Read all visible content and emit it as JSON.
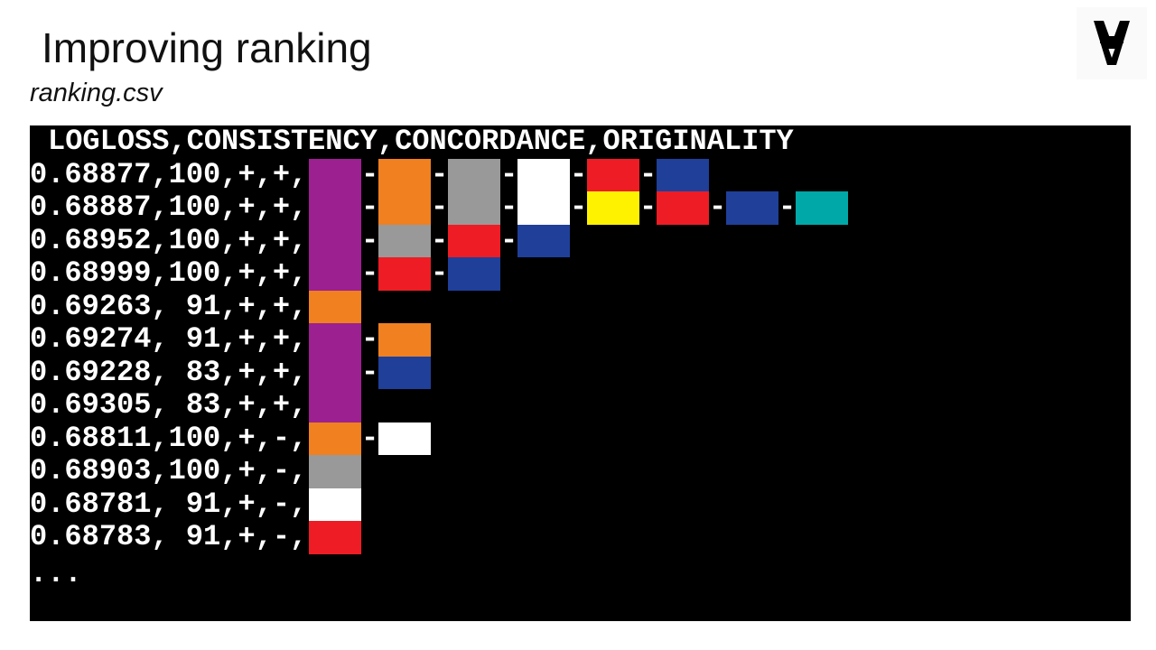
{
  "slide": {
    "title": "Improving ranking",
    "subtitle": "ranking.csv",
    "logo_icon": "inverted-a-logo-icon"
  },
  "terminal": {
    "header": "LOGLOSS,CONSISTENCY,CONCORDANCE,ORIGINALITY",
    "dash_glyph": "-",
    "ellipsis": "...",
    "colors": {
      "purple": "#9c2090",
      "orange": "#f08020",
      "gray": "#999999",
      "white": "#ffffff",
      "red": "#ee1c24",
      "blue": "#1f3f99",
      "yellow": "#fff200",
      "teal": "#00a8a8"
    },
    "rows": [
      {
        "text": "0.68877,100,+,+,",
        "swatches": [
          "purple",
          "orange",
          "gray",
          "white",
          "red",
          "blue"
        ]
      },
      {
        "text": "0.68887,100,+,+,",
        "swatches": [
          "purple",
          "orange",
          "gray",
          "white",
          "yellow",
          "red",
          "blue",
          "teal"
        ]
      },
      {
        "text": "0.68952,100,+,+,",
        "swatches": [
          "purple",
          "gray",
          "red",
          "blue"
        ]
      },
      {
        "text": "0.68999,100,+,+,",
        "swatches": [
          "purple",
          "red",
          "blue"
        ]
      },
      {
        "text": "0.69263, 91,+,+,",
        "swatches": [
          "orange"
        ]
      },
      {
        "text": "0.69274, 91,+,+,",
        "swatches": [
          "purple",
          "orange"
        ]
      },
      {
        "text": "0.69228, 83,+,+,",
        "swatches": [
          "purple",
          "blue"
        ]
      },
      {
        "text": "0.69305, 83,+,+,",
        "swatches": [
          "purple"
        ]
      },
      {
        "text": "0.68811,100,+,-,",
        "swatches": [
          "orange",
          "white"
        ]
      },
      {
        "text": "0.68903,100,+,-,",
        "swatches": [
          "gray"
        ]
      },
      {
        "text": "0.68781, 91,+,-,",
        "swatches": [
          "white"
        ]
      },
      {
        "text": "0.68783, 91,+,-,",
        "swatches": [
          "red"
        ]
      }
    ]
  }
}
